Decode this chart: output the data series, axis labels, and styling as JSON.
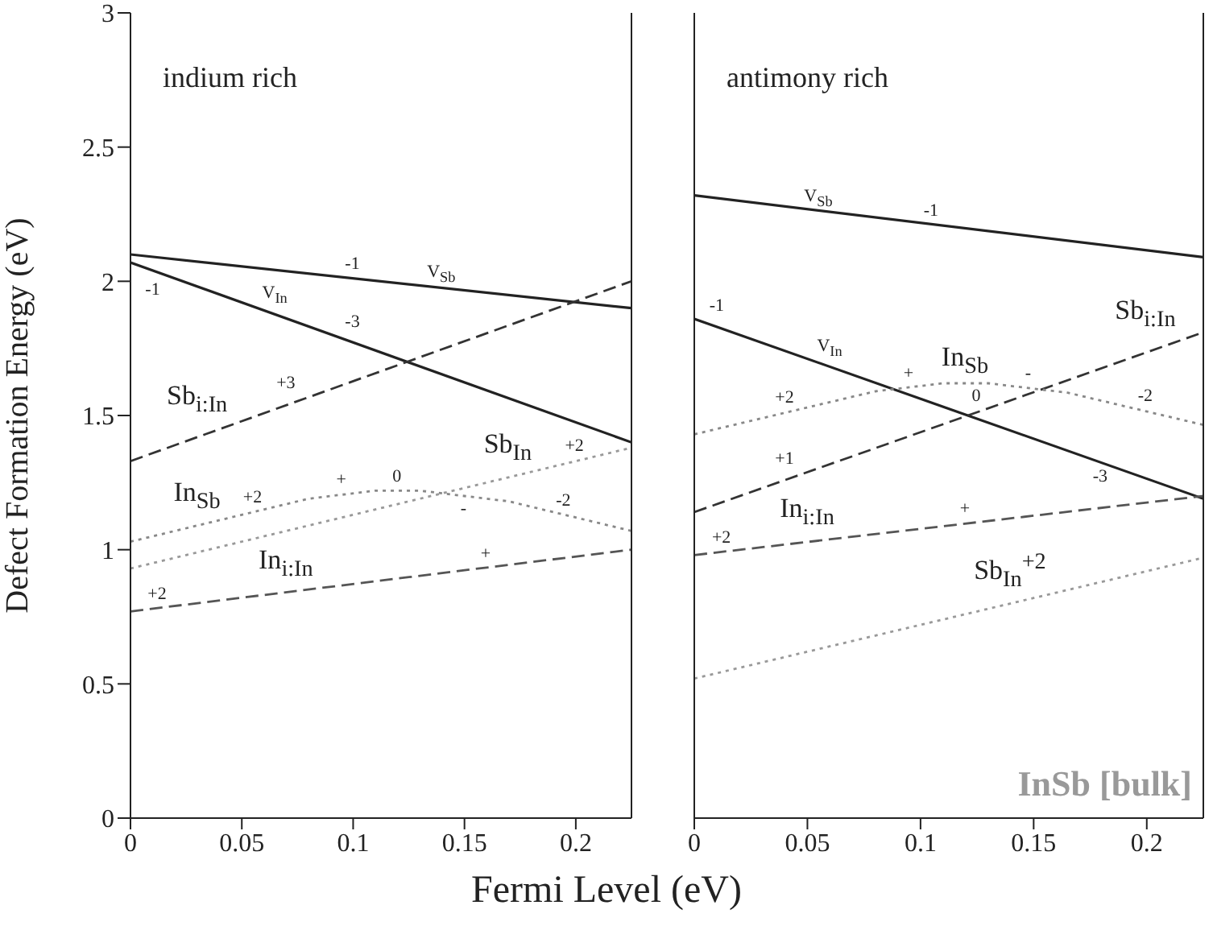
{
  "chart_data": [
    {
      "type": "line",
      "ylabel": "Defect Formation Energy (eV)",
      "xlabel": "Fermi Level (eV)",
      "xlim": [
        0,
        0.225
      ],
      "xticks": [
        0,
        0.05,
        0.1,
        0.15,
        0.2
      ],
      "ylim": [
        0,
        3
      ],
      "yticks": [
        0,
        0.5,
        1,
        1.5,
        2,
        2.5,
        3
      ],
      "series": [
        {
          "color": "#222222",
          "line_style": "solid",
          "x": [
            0,
            0.225
          ],
          "values": [
            2.1,
            1.9
          ]
        },
        {
          "color": "#222222",
          "line_style": "solid",
          "x": [
            0,
            0.225
          ],
          "values": [
            2.07,
            1.4
          ]
        },
        {
          "color": "#333333",
          "line_style": "dashed",
          "x": [
            0,
            0.225
          ],
          "values": [
            1.33,
            2.0
          ]
        },
        {
          "color": "#888888",
          "line_style": "dotted",
          "x": [
            0,
            0.08,
            0.11,
            0.13,
            0.17,
            0.225
          ],
          "values": [
            1.03,
            1.19,
            1.22,
            1.22,
            1.18,
            1.07
          ]
        },
        {
          "color": "#999999",
          "line_style": "dotted",
          "x": [
            0,
            0.225
          ],
          "values": [
            0.93,
            1.38
          ]
        },
        {
          "color": "#555555",
          "line_style": "dashed",
          "x": [
            0,
            0.225
          ],
          "values": [
            0.77,
            1.0
          ]
        }
      ],
      "annotations": [
        "indium rich",
        {
          "text": "V$_{Sb}$",
          "x": 0.14,
          "y": 1.98
        },
        {
          "text": "-1",
          "x": 0.1,
          "y": 2.01
        },
        {
          "text": "V$_{In}$",
          "x": 0.065,
          "y": 1.88
        },
        {
          "text": "-3",
          "x": 0.1,
          "y": 1.77
        },
        {
          "text": "-1",
          "x": 0.01,
          "y": 2.04
        },
        {
          "text": "Sb$_{i:In}$",
          "x": 0.03,
          "y": 1.42
        },
        {
          "text": "+3",
          "x": 0.07,
          "y": 1.54
        },
        {
          "text": "In$_{Sb}$",
          "x": 0.03,
          "y": 1.09
        },
        {
          "text": "+2",
          "x": 0.055,
          "y": 1.14
        },
        {
          "text": "+",
          "x": 0.095,
          "y": 1.205
        },
        {
          "text": "0",
          "x": 0.12,
          "y": 1.22
        },
        {
          "text": "-",
          "x": 0.15,
          "y": 1.2
        },
        {
          "text": "-2",
          "x": 0.195,
          "y": 1.13
        },
        {
          "text": "+2",
          "x": 0.2,
          "y": 1.33
        },
        {
          "text": "Sb$_{In}$",
          "x": 0.17,
          "y": 1.27
        },
        {
          "text": "+",
          "x": 0.16,
          "y": 0.93
        },
        {
          "text": "In$_{i:In}$",
          "x": 0.07,
          "y": 0.84
        },
        {
          "text": "+2",
          "x": 0.012,
          "y": 0.78
        }
      ]
    },
    {
      "type": "line",
      "xlim": [
        0,
        0.225
      ],
      "xticks": [
        0,
        0.05,
        0.1,
        0.15,
        0.2
      ],
      "ylim": [
        0,
        3
      ],
      "yticks": [
        0,
        0.5,
        1,
        1.5,
        2,
        2.5,
        3
      ],
      "tick_labels": "x",
      "series": [
        {
          "color": "#222222",
          "line_style": "solid",
          "x": [
            0,
            0.225
          ],
          "values": [
            2.32,
            2.09
          ]
        },
        {
          "color": "#222222",
          "line_style": "solid",
          "x": [
            0,
            0.225
          ],
          "values": [
            1.86,
            1.19
          ]
        },
        {
          "color": "#333333",
          "line_style": "dashed",
          "x": [
            0,
            0.225
          ],
          "values": [
            1.14,
            1.81
          ]
        },
        {
          "color": "#888888",
          "line_style": "dotted",
          "x": [
            0,
            0.08,
            0.11,
            0.13,
            0.165,
            0.225
          ],
          "values": [
            1.43,
            1.59,
            1.62,
            1.62,
            1.585,
            1.465
          ]
        },
        {
          "color": "#555555",
          "line_style": "dashed",
          "x": [
            0,
            0.225
          ],
          "values": [
            0.98,
            1.2
          ]
        },
        {
          "color": "#999999",
          "line_style": "dotted",
          "x": [
            0,
            0.225
          ],
          "values": [
            0.52,
            0.97
          ]
        }
      ],
      "annotations": [
        "antimony rich",
        "InSb [bulk]",
        {
          "text": "V$_{Sb}$",
          "x": 0.055,
          "y": 2.26
        },
        {
          "text": "-1",
          "x": 0.105,
          "y": 2.21
        },
        {
          "text": "-1",
          "x": 0.01,
          "y": 1.83
        },
        {
          "text": "V$_{In}$",
          "x": 0.06,
          "y": 1.68
        },
        {
          "text": "-3",
          "x": 0.18,
          "y": 1.32
        },
        {
          "text": "In$_{Sb}$",
          "x": 0.12,
          "y": 1.62
        },
        {
          "text": "+2",
          "x": 0.04,
          "y": 1.51
        },
        {
          "text": "+",
          "x": 0.095,
          "y": 1.605
        },
        {
          "text": "0",
          "x": 0.125,
          "y": 1.62
        },
        {
          "text": "-",
          "x": 0.148,
          "y": 1.6
        },
        {
          "text": "-2",
          "x": 0.2,
          "y": 1.52
        },
        {
          "text": "Sb$_{i:In}$",
          "x": 0.2,
          "y": 1.74
        },
        {
          "text": "+1",
          "x": 0.04,
          "y": 1.26
        },
        {
          "text": "+",
          "x": 0.12,
          "y": 1.1
        },
        {
          "text": "In$_{i:In}$",
          "x": 0.05,
          "y": 1.03
        },
        {
          "text": "+2",
          "x": 0.012,
          "y": 0.99
        },
        {
          "text": "Sb$_{In}$$^{+2}$",
          "x": 0.14,
          "y": 0.8
        }
      ]
    }
  ]
}
